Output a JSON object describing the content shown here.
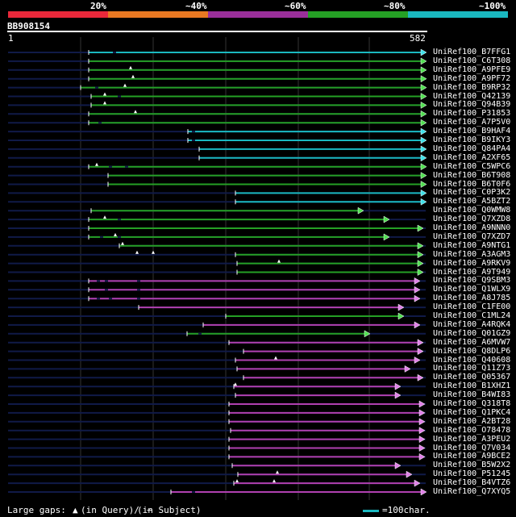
{
  "header": {
    "identity_labels": [
      "20%",
      "~40%",
      "~60%",
      "~80%",
      "~100%"
    ],
    "identity_colors": [
      "#e8283a",
      "#e87822",
      "#9a2f9a",
      "#25a025",
      "#1ab8c0"
    ],
    "query_id": "BB908154",
    "scale_start": "1",
    "scale_end": "582"
  },
  "query": {
    "length": 582
  },
  "hits": [
    {
      "id": "UniRef100_B7FFG1",
      "color": "cyan",
      "start": 110,
      "end": 528,
      "gaps": [
        140
      ]
    },
    {
      "id": "UniRef100_C6T308",
      "color": "green",
      "start": 110,
      "end": 528,
      "gaps": []
    },
    {
      "id": "UniRef100_A9PFE9",
      "color": "green",
      "start": 110,
      "end": 528,
      "gaps": [],
      "tris": [
        162
      ]
    },
    {
      "id": "UniRef100_A9PF72",
      "color": "green",
      "start": 110,
      "end": 528,
      "gaps": [],
      "tris": [
        165
      ]
    },
    {
      "id": "UniRef100_B9RP32",
      "color": "green",
      "start": 100,
      "end": 528,
      "gaps": [
        118
      ],
      "tris": [
        155
      ]
    },
    {
      "id": "UniRef100_Q42139",
      "color": "green",
      "start": 113,
      "end": 528,
      "gaps": [
        146
      ],
      "tris": [
        130
      ]
    },
    {
      "id": "UniRef100_Q94B39",
      "color": "green",
      "start": 113,
      "end": 528,
      "gaps": [],
      "tris": [
        130
      ]
    },
    {
      "id": "UniRef100_P31853",
      "color": "green",
      "start": 110,
      "end": 528,
      "gaps": [],
      "tris": [
        168
      ]
    },
    {
      "id": "UniRef100_A7P5V0",
      "color": "green",
      "start": 110,
      "end": 528,
      "gaps": [
        122
      ],
      "tris": []
    },
    {
      "id": "UniRef100_B9HAF4",
      "color": "cyan",
      "start": 233,
      "end": 528,
      "gaps": [
        238
      ],
      "tris": []
    },
    {
      "id": "UniRef100_B9IKY3",
      "color": "cyan",
      "start": 233,
      "end": 528,
      "gaps": [
        238
      ],
      "tris": []
    },
    {
      "id": "UniRef100_Q84PA4",
      "color": "cyan",
      "start": 247,
      "end": 528,
      "gaps": [],
      "tris": []
    },
    {
      "id": "UniRef100_A2XF65",
      "color": "cyan",
      "start": 247,
      "end": 528,
      "gaps": [],
      "tris": []
    },
    {
      "id": "UniRef100_C5WPC6",
      "color": "green",
      "start": 110,
      "end": 528,
      "gaps": [
        135,
        155
      ],
      "tris": [
        120
      ]
    },
    {
      "id": "UniRef100_B6T908",
      "color": "green",
      "start": 134,
      "end": 528,
      "gaps": [],
      "tris": []
    },
    {
      "id": "UniRef100_B6T0F6",
      "color": "green",
      "start": 134,
      "end": 528,
      "gaps": [],
      "tris": []
    },
    {
      "id": "UniRef100_C0P3K2",
      "color": "cyan",
      "start": 292,
      "end": 528,
      "gaps": [],
      "tris": []
    },
    {
      "id": "UniRef100_A5BZT2",
      "color": "cyan",
      "start": 292,
      "end": 528,
      "gaps": [],
      "tris": []
    },
    {
      "id": "UniRef100_Q0WMW8",
      "color": "green",
      "start": 113,
      "end": 450,
      "gaps": [],
      "tris": []
    },
    {
      "id": "UniRef100_Q7XZD8",
      "color": "green",
      "start": 110,
      "end": 482,
      "gaps": [
        146
      ],
      "tris": [
        130
      ]
    },
    {
      "id": "UniRef100_A9NNN0",
      "color": "green",
      "start": 110,
      "end": 524,
      "gaps": [],
      "tris": []
    },
    {
      "id": "UniRef100_Q7XZD7",
      "color": "green",
      "start": 110,
      "end": 482,
      "gaps": [
        124,
        146
      ],
      "tris": [
        143
      ]
    },
    {
      "id": "UniRef100_A9NTG1",
      "color": "green",
      "start": 148,
      "end": 524,
      "gaps": [],
      "tris": [
        152
      ]
    },
    {
      "id": "UniRef100_A3AGM3",
      "color": "green",
      "start": 292,
      "end": 524,
      "gaps": [],
      "tris": [
        170,
        190
      ]
    },
    {
      "id": "UniRef100_A9RKV9",
      "color": "green",
      "start": 294,
      "end": 524,
      "gaps": [],
      "tris": [
        346
      ]
    },
    {
      "id": "UniRef100_A9T949",
      "color": "green",
      "start": 294,
      "end": 524,
      "gaps": [],
      "tris": []
    },
    {
      "id": "UniRef100_Q9SBM3",
      "color": "magenta",
      "start": 110,
      "end": 520,
      "gaps": [
        120,
        130,
        170
      ],
      "tris": []
    },
    {
      "id": "UniRef100_Q1WLX9",
      "color": "magenta",
      "start": 110,
      "end": 520,
      "gaps": [
        130,
        170
      ],
      "tris": []
    },
    {
      "id": "UniRef100_A8J785",
      "color": "magenta",
      "start": 110,
      "end": 520,
      "gaps": [
        120,
        135,
        170
      ],
      "tris": []
    },
    {
      "id": "UniRef100_C1FE00",
      "color": "magenta",
      "start": 172,
      "end": 500,
      "gaps": [],
      "tris": []
    },
    {
      "id": "UniRef100_C1ML24",
      "color": "green",
      "start": 280,
      "end": 500,
      "gaps": [],
      "tris": []
    },
    {
      "id": "UniRef100_A4RQK4",
      "color": "magenta",
      "start": 252,
      "end": 520,
      "gaps": [],
      "tris": []
    },
    {
      "id": "UniRef100_Q01GZ9",
      "color": "green",
      "start": 232,
      "end": 458,
      "gaps": [
        246
      ],
      "tris": []
    },
    {
      "id": "UniRef100_A6MVW7",
      "color": "magenta",
      "start": 284,
      "end": 524,
      "gaps": [],
      "tris": []
    },
    {
      "id": "UniRef100_Q8DLP6",
      "color": "magenta",
      "start": 302,
      "end": 524,
      "gaps": [],
      "tris": []
    },
    {
      "id": "UniRef100_Q40608",
      "color": "magenta",
      "start": 292,
      "end": 520,
      "gaps": [],
      "tris": [
        342
      ]
    },
    {
      "id": "UniRef100_Q11Z73",
      "color": "magenta",
      "start": 294,
      "end": 508,
      "gaps": [],
      "tris": []
    },
    {
      "id": "UniRef100_Q05367",
      "color": "magenta",
      "start": 302,
      "end": 524,
      "gaps": [],
      "tris": []
    },
    {
      "id": "UniRef100_B1XHZ1",
      "color": "magenta",
      "start": 290,
      "end": 496,
      "gaps": [],
      "tris": [
        292
      ]
    },
    {
      "id": "UniRef100_B4WI83",
      "color": "magenta",
      "start": 292,
      "end": 496,
      "gaps": [],
      "tris": []
    },
    {
      "id": "UniRef100_Q318T8",
      "color": "magenta",
      "start": 284,
      "end": 526,
      "gaps": [],
      "tris": []
    },
    {
      "id": "UniRef100_Q1PKC4",
      "color": "magenta",
      "start": 284,
      "end": 526,
      "gaps": [],
      "tris": []
    },
    {
      "id": "UniRef100_A2BT28",
      "color": "magenta",
      "start": 284,
      "end": 526,
      "gaps": [],
      "tris": []
    },
    {
      "id": "UniRef100_O78478",
      "color": "magenta",
      "start": 286,
      "end": 526,
      "gaps": [],
      "tris": []
    },
    {
      "id": "UniRef100_A3PEU2",
      "color": "magenta",
      "start": 284,
      "end": 526,
      "gaps": [],
      "tris": []
    },
    {
      "id": "UniRef100_Q7V034",
      "color": "magenta",
      "start": 284,
      "end": 526,
      "gaps": [],
      "tris": []
    },
    {
      "id": "UniRef100_A9BCE2",
      "color": "magenta",
      "start": 284,
      "end": 526,
      "gaps": [],
      "tris": []
    },
    {
      "id": "UniRef100_B5W2X2",
      "color": "magenta",
      "start": 288,
      "end": 496,
      "gaps": [],
      "tris": []
    },
    {
      "id": "UniRef100_P51245",
      "color": "magenta",
      "start": 295,
      "end": 510,
      "gaps": [],
      "tris": [
        344
      ]
    },
    {
      "id": "UniRef100_B4VTZ6",
      "color": "magenta",
      "start": 290,
      "end": 520,
      "gaps": [],
      "tris": [
        294,
        340
      ]
    },
    {
      "id": "UniRef100_Q7XYQ5",
      "color": "magenta",
      "start": 212,
      "end": 528,
      "gaps": [
        238
      ],
      "tris": []
    }
  ],
  "footer": {
    "large_gaps_label": "Large gaps:",
    "in_query_label": "(in Query)/",
    "in_subject_label": "(in Subject)",
    "scale_label": "=100char."
  }
}
